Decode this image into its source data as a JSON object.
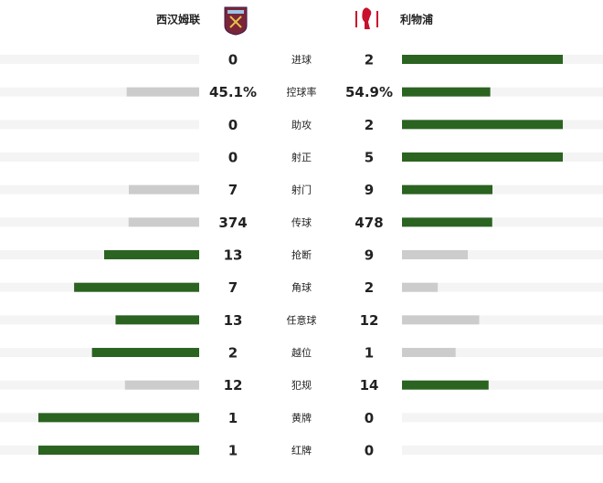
{
  "teams": {
    "home": "西汉姆联",
    "away": "利物浦"
  },
  "bar_colors": {
    "leader": "#2b6321",
    "trailer": "#cccccc",
    "track": "#f4f4f4"
  },
  "stats": {
    "rows": [
      {
        "label": "进球",
        "home": 0,
        "away": 2
      },
      {
        "label": "控球率",
        "home": 45.1,
        "away": 54.9,
        "home_label": "45.1%",
        "away_label": "54.9%"
      },
      {
        "label": "助攻",
        "home": 0,
        "away": 2
      },
      {
        "label": "射正",
        "home": 0,
        "away": 5
      },
      {
        "label": "射门",
        "home": 7,
        "away": 9
      },
      {
        "label": "传球",
        "home": 374,
        "away": 478
      },
      {
        "label": "抢断",
        "home": 13,
        "away": 9
      },
      {
        "label": "角球",
        "home": 7,
        "away": 2
      },
      {
        "label": "任意球",
        "home": 13,
        "away": 12
      },
      {
        "label": "越位",
        "home": 2,
        "away": 1
      },
      {
        "label": "犯规",
        "home": 12,
        "away": 14
      },
      {
        "label": "黄牌",
        "home": 1,
        "away": 0
      },
      {
        "label": "红牌",
        "home": 1,
        "away": 0
      }
    ]
  }
}
